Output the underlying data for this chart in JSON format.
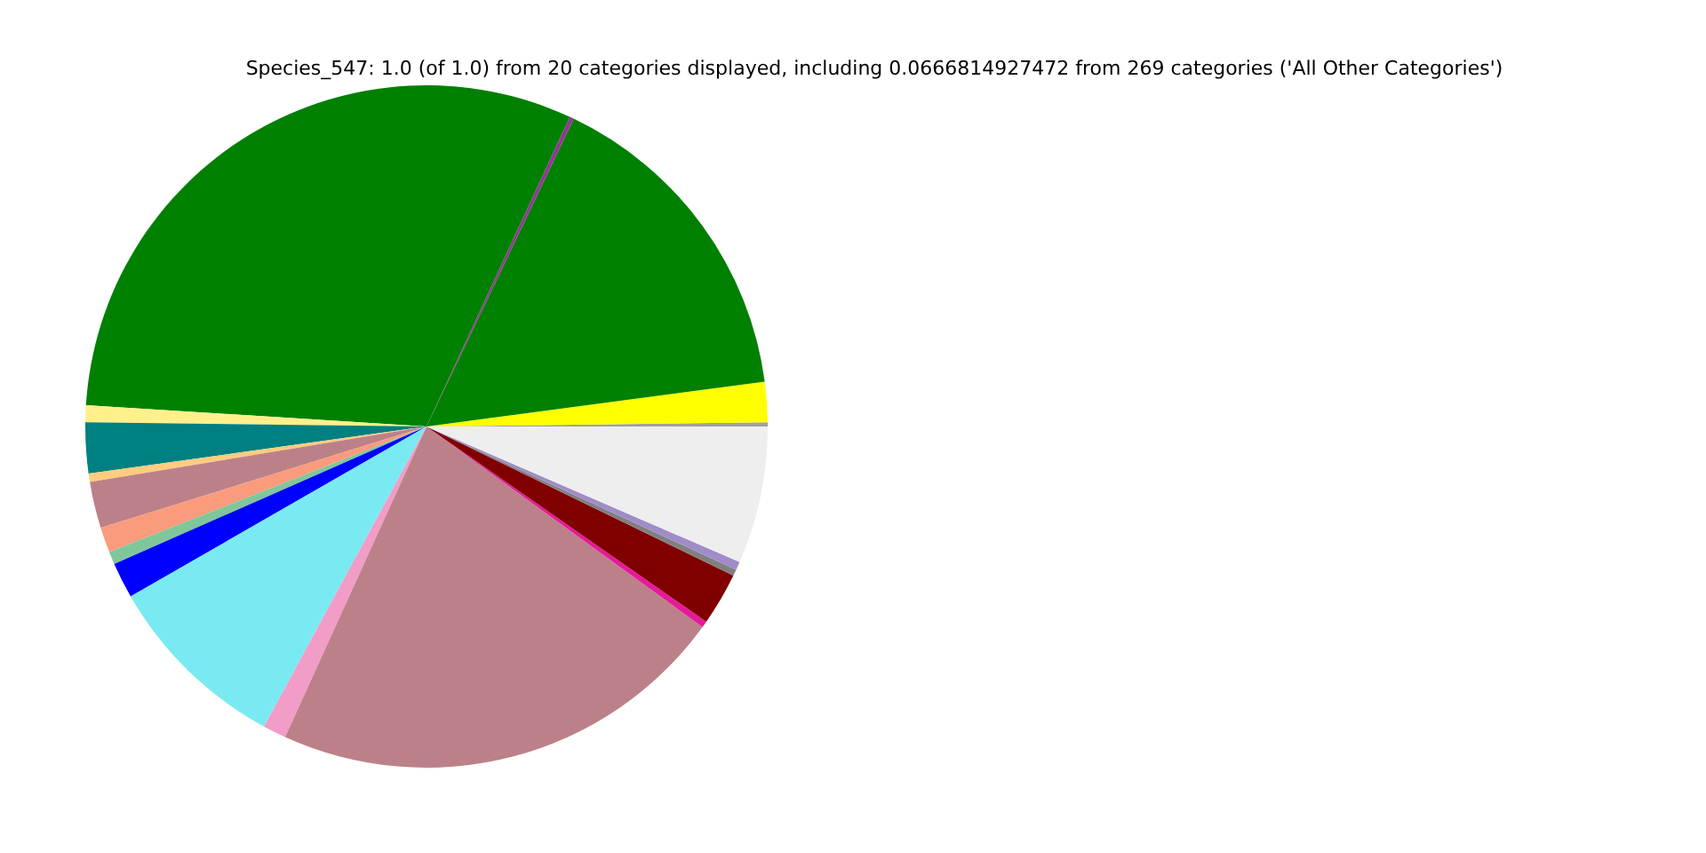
{
  "chart_data": {
    "type": "pie",
    "title": "Species_547: 1.0 (of 1.0) from 20 categories displayed, including 0.0666814927472 from 269 categories ('All Other Categories')",
    "categories": [
      null,
      null,
      null,
      null,
      null,
      null,
      null,
      null,
      null,
      null,
      null,
      null,
      null,
      null,
      null,
      null,
      null,
      null,
      null,
      null
    ],
    "values": [
      0.2,
      1.9,
      15.8,
      0.2,
      30.9,
      0.8,
      2.4,
      0.4,
      2.2,
      1.2,
      0.6,
      1.7,
      8.8,
      1.1,
      21.8,
      0.3,
      2.5,
      0.3,
      0.4,
      6.5
    ],
    "colors": [
      "#a0a0a0",
      "#ffff00",
      "#008000",
      "#993399",
      "#008000",
      "#fff08c",
      "#008080",
      "#ffcc80",
      "#bc8188",
      "#f99b7c",
      "#7fc79b",
      "#0000ff",
      "#7aeaf2",
      "#f29cc8",
      "#bc8188",
      "#e6199b",
      "#800000",
      "#808080",
      "#a08cc8",
      "#eeeeee"
    ]
  }
}
